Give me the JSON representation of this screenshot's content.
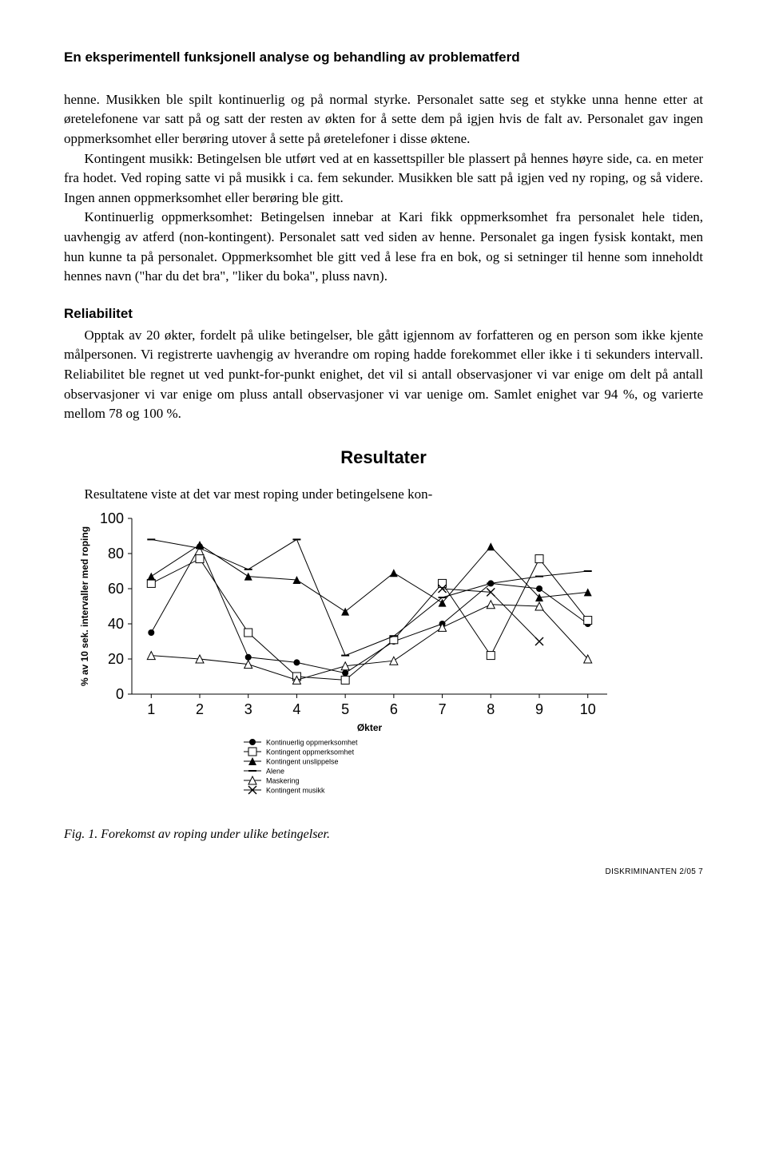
{
  "header": "En eksperimentell funksjonell analyse og behandling av problematferd",
  "para1": "henne. Musikken ble spilt kontinuerlig og på normal styrke. Personalet satte seg et stykke unna henne etter at øretelefonene var satt på og satt der resten av økten for å sette dem på igjen hvis de falt av. Personalet gav ingen oppmerksomhet eller berøring utover å sette på øretelefoner i disse øktene.",
  "para2": "Kontingent musikk: Betingelsen ble utført ved at en kassettspiller ble plassert på hennes høyre side, ca. en meter fra hodet. Ved roping satte vi på musikk i ca. fem sekunder. Musikken ble satt på igjen ved ny roping, og så videre. Ingen annen oppmerksomhet eller berøring ble gitt.",
  "para3": "Kontinuerlig oppmerksomhet: Betingelsen innebar at Kari fikk oppmerksomhet fra personalet hele tiden, uavhengig av atferd (non-kontingent). Personalet satt ved siden av henne. Personalet ga ingen fysisk kontakt, men hun kunne ta på personalet. Oppmerksomhet ble gitt ved å lese fra en bok, og si setninger til henne som inneholdt hennes navn (\"har du det bra\", \"liker du boka\", pluss navn).",
  "reliHeading": "Reliabilitet",
  "para4": "Opptak av 20 økter, fordelt på ulike betingelser, ble gått igjennom av forfatteren og en person som ikke kjente målpersonen. Vi registrerte uavhengig av hverandre om roping hadde forekommet eller ikke i ti sekunders intervall. Reliabilitet ble regnet ut ved punkt-for-punkt enighet, det vil si antall observasjoner vi var enige om delt på antall observasjoner vi var enige om pluss antall observasjoner vi var uenige om. Samlet enighet var 94 %, og varierte mellom 78 og 100 %.",
  "resultsHeading": "Resultater",
  "para5": "Resultatene viste at det var mest roping under betingelsene kon-",
  "figCaption": "Fig. 1. Forekomst av roping under ulike betingelser.",
  "footer": "DISKRIMINANTEN 2/05 7",
  "chart": {
    "type": "line",
    "yLabel": "% av 10 sek. intervaller med roping",
    "xLabel": "Økter",
    "xTicks": [
      1,
      2,
      3,
      4,
      5,
      6,
      7,
      8,
      9,
      10
    ],
    "yTicks": [
      0,
      20,
      40,
      60,
      80,
      100
    ],
    "xlim": [
      0.6,
      10.4
    ],
    "ylim": [
      0,
      100
    ],
    "lineColor": "#000000",
    "lineWidth": 1,
    "markerSize": 5,
    "background": "#ffffff",
    "series": [
      {
        "name": "Kontinuerlig oppmerksomhet",
        "marker": "circle-filled",
        "data": [
          [
            1,
            35
          ],
          [
            2,
            84
          ],
          [
            3,
            21
          ],
          [
            4,
            18
          ],
          [
            5,
            12
          ],
          [
            6,
            30
          ],
          [
            7,
            40
          ],
          [
            8,
            63
          ],
          [
            9,
            60
          ],
          [
            10,
            40
          ]
        ]
      },
      {
        "name": "Kontingent oppmerksomhet",
        "marker": "square-open",
        "data": [
          [
            1,
            63
          ],
          [
            2,
            77
          ],
          [
            3,
            35
          ],
          [
            4,
            10
          ],
          [
            5,
            8
          ],
          [
            6,
            31
          ],
          [
            7,
            63
          ],
          [
            8,
            22
          ],
          [
            9,
            77
          ],
          [
            10,
            42
          ]
        ]
      },
      {
        "name": "Kontingent unslippelse",
        "marker": "triangle-filled",
        "data": [
          [
            1,
            67
          ],
          [
            2,
            85
          ],
          [
            3,
            67
          ],
          [
            4,
            65
          ],
          [
            5,
            47
          ],
          [
            6,
            69
          ],
          [
            7,
            52
          ],
          [
            8,
            84
          ],
          [
            9,
            55
          ],
          [
            10,
            58
          ]
        ]
      },
      {
        "name": "Alene",
        "marker": "dash",
        "data": [
          [
            1,
            88
          ],
          [
            2,
            83
          ],
          [
            3,
            71
          ],
          [
            4,
            88
          ],
          [
            5,
            22
          ],
          [
            6,
            33
          ],
          [
            7,
            55
          ],
          [
            8,
            63
          ],
          [
            9,
            67
          ],
          [
            10,
            70
          ]
        ]
      },
      {
        "name": "Maskering",
        "marker": "triangle-open",
        "data": [
          [
            1,
            22
          ],
          [
            2,
            20
          ],
          [
            3,
            17
          ],
          [
            4,
            8
          ],
          [
            5,
            16
          ],
          [
            6,
            19
          ],
          [
            7,
            38
          ],
          [
            8,
            51
          ],
          [
            9,
            50
          ],
          [
            10,
            20
          ]
        ]
      },
      {
        "name": "Kontingent musikk",
        "marker": "x",
        "data": [
          [
            7,
            60
          ],
          [
            8,
            58
          ],
          [
            9,
            30
          ]
        ]
      }
    ],
    "legend": [
      "Kontinuerlig oppmerksomhet",
      "Kontingent oppmerksomhet",
      "Kontingent unslippelse",
      "Alene",
      "Maskering",
      "Kontingent musikk"
    ]
  }
}
